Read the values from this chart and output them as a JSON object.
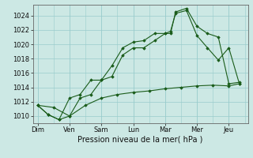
{
  "xlabel": "Pression niveau de la mer( hPa )",
  "background_color": "#cce8e4",
  "grid_color": "#99cccc",
  "line_color": "#1a5c1a",
  "x_labels": [
    "Dim",
    "Ven",
    "Sam",
    "Lun",
    "Mar",
    "Mer",
    "Jeu"
  ],
  "x_tick_pos": [
    0,
    1,
    2,
    3,
    4,
    5,
    6
  ],
  "ylim": [
    1009.0,
    1025.5
  ],
  "yticks": [
    1010,
    1012,
    1014,
    1016,
    1018,
    1020,
    1022,
    1024
  ],
  "series": [
    {
      "x": [
        0.0,
        0.33,
        0.67,
        1.0,
        1.33,
        1.67,
        2.0,
        2.33,
        2.67,
        3.0,
        3.33,
        3.67,
        4.0,
        4.17,
        4.33,
        4.67,
        5.0,
        5.33,
        5.67,
        6.0,
        6.33
      ],
      "y": [
        1011.5,
        1010.2,
        1009.5,
        1010.0,
        1012.5,
        1013.0,
        1015.0,
        1015.5,
        1018.5,
        1019.5,
        1019.5,
        1020.5,
        1021.5,
        1021.5,
        1024.5,
        1025.0,
        1022.5,
        1021.5,
        1021.0,
        1014.5,
        1014.7
      ]
    },
    {
      "x": [
        0.0,
        0.33,
        0.67,
        1.0,
        1.33,
        1.67,
        2.0,
        2.33,
        2.67,
        3.0,
        3.33,
        3.67,
        4.0,
        4.17,
        4.33,
        4.67,
        5.0,
        5.33,
        5.67,
        6.0,
        6.33
      ],
      "y": [
        1011.5,
        1010.2,
        1009.5,
        1012.5,
        1013.0,
        1015.0,
        1015.0,
        1017.0,
        1019.5,
        1020.3,
        1020.5,
        1021.5,
        1021.5,
        1021.8,
        1024.3,
        1024.7,
        1021.2,
        1019.5,
        1017.8,
        1019.5,
        1014.5
      ]
    },
    {
      "x": [
        0.0,
        0.5,
        1.0,
        1.5,
        2.0,
        2.5,
        3.0,
        3.5,
        4.0,
        4.5,
        5.0,
        5.5,
        6.0,
        6.33
      ],
      "y": [
        1011.5,
        1011.2,
        1010.0,
        1011.5,
        1012.5,
        1013.0,
        1013.3,
        1013.5,
        1013.8,
        1014.0,
        1014.2,
        1014.3,
        1014.2,
        1014.5
      ]
    }
  ]
}
